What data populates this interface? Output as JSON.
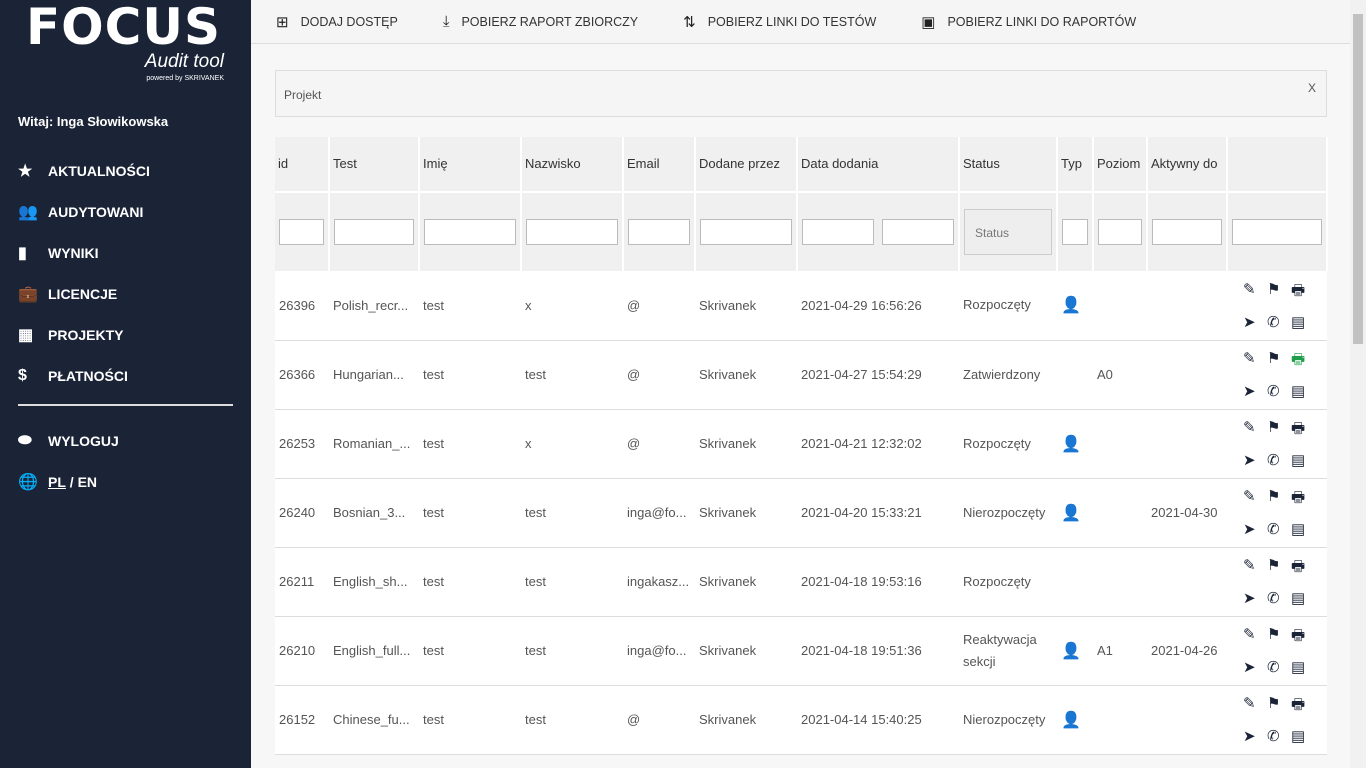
{
  "sidebar": {
    "logo": "FOCUS",
    "logo_sub": "Audit tool",
    "logo_powered": "powered by SKRIVANEK",
    "welcome": "Witaj: Inga Słowikowska",
    "items": [
      {
        "icon": "star-icon",
        "glyph": "★",
        "label": "AKTUALNOŚCI"
      },
      {
        "icon": "users-icon",
        "glyph": "👥",
        "label": "AUDYTOWANI"
      },
      {
        "icon": "bar-chart-icon",
        "glyph": "▮",
        "label": "WYNIKI"
      },
      {
        "icon": "briefcase-icon",
        "glyph": "💼",
        "label": "LICENCJE"
      },
      {
        "icon": "building-icon",
        "glyph": "▦",
        "label": "PROJEKTY"
      },
      {
        "icon": "dollar-icon",
        "glyph": "$",
        "label": "PŁATNOŚCI"
      }
    ],
    "logout": "WYLOGUJ",
    "lang_pl": "PL",
    "lang_sep": "/",
    "lang_en": "EN"
  },
  "toolbar": [
    {
      "icon": "plus-box-icon",
      "glyph": "⊞",
      "label": "DODAJ DOSTĘP"
    },
    {
      "icon": "download-icon",
      "glyph": "⤓",
      "label": "POBIERZ RAPORT ZBIORCZY"
    },
    {
      "icon": "sort-icon",
      "glyph": "⇅",
      "label": "POBIERZ LINKI DO TESTÓW"
    },
    {
      "icon": "archive-icon",
      "glyph": "▣",
      "label": "POBIERZ LINKI DO RAPORTÓW"
    }
  ],
  "filter": {
    "label": "Projekt",
    "clear": "X"
  },
  "table": {
    "headers": [
      "id",
      "Test",
      "Imię",
      "Nazwisko",
      "Email",
      "Dodane przez",
      "Data dodania",
      "Status",
      "Typ",
      "Poziom",
      "Aktywny do",
      ""
    ],
    "status_placeholder": "Status",
    "rows": [
      [
        "26396",
        "Polish_recr...",
        "test",
        "x",
        "@",
        "Skrivanek",
        "2021-04-29 16:56:26",
        "Rozpoczęty",
        "headset",
        "",
        "",
        ""
      ],
      [
        "26366",
        "Hungarian...",
        "test",
        "test",
        "@",
        "Skrivanek",
        "2021-04-27 15:54:29",
        "Zatwierdzony",
        "",
        "A0",
        "",
        "green"
      ],
      [
        "26253",
        "Romanian_...",
        "test",
        "x",
        "@",
        "Skrivanek",
        "2021-04-21 12:32:02",
        "Rozpoczęty",
        "headset",
        "",
        "",
        ""
      ],
      [
        "26240",
        "Bosnian_3...",
        "test",
        "test",
        "inga@fo...",
        "Skrivanek",
        "2021-04-20 15:33:21",
        "Nierozpoczęty",
        "headset",
        "",
        "2021-04-30",
        ""
      ],
      [
        "26211",
        "English_sh...",
        "test",
        "test",
        "ingakasz...",
        "Skrivanek",
        "2021-04-18 19:53:16",
        "Rozpoczęty",
        "",
        "",
        "",
        ""
      ],
      [
        "26210",
        "English_full...",
        "test",
        "test",
        "inga@fo...",
        "Skrivanek",
        "2021-04-18 19:51:36",
        "Reaktywacja sekcji",
        "headset",
        "A1",
        "2021-04-26",
        ""
      ],
      [
        "26152",
        "Chinese_fu...",
        "test",
        "test",
        "@",
        "Skrivanek",
        "2021-04-14 15:40:25",
        "Nierozpoczęty",
        "headset",
        "",
        "",
        ""
      ]
    ]
  },
  "colors": {
    "sidebar": "#1b2436",
    "typ_icon": "#3a86c8",
    "print_active": "#1e9e4a"
  }
}
